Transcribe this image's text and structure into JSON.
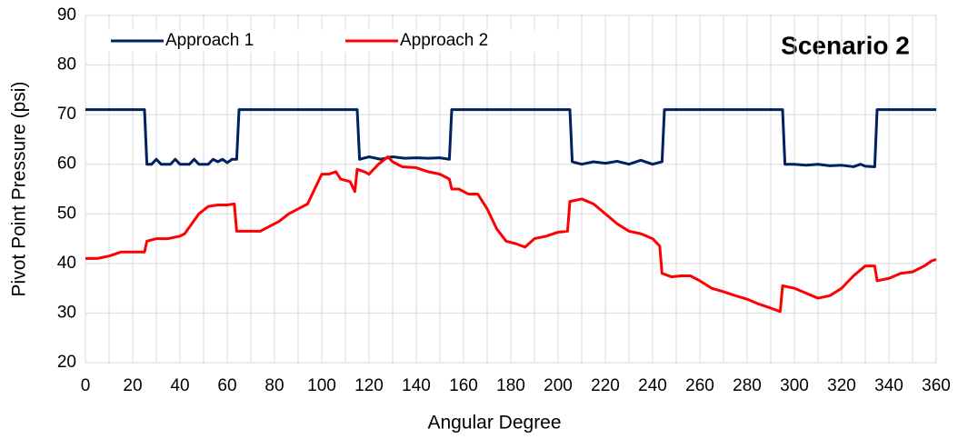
{
  "chart_data": {
    "type": "line",
    "annotation": "Scenario 2",
    "xlabel": "Angular Degree",
    "ylabel": "Pivot Point Pressure (psi)",
    "xlim": [
      0,
      360
    ],
    "xticks": [
      0,
      20,
      40,
      60,
      80,
      100,
      120,
      140,
      160,
      180,
      200,
      220,
      240,
      260,
      280,
      300,
      320,
      340,
      360
    ],
    "x_minor_grid": [
      10,
      30,
      50,
      70,
      90,
      110,
      130,
      150,
      170,
      190,
      210,
      230,
      250,
      270,
      290,
      310,
      330,
      350
    ],
    "ylim": [
      20,
      90
    ],
    "yticks": [
      20,
      30,
      40,
      50,
      60,
      70,
      80,
      90
    ],
    "grid": true,
    "legend": "top-left",
    "series": [
      {
        "name": "Approach 1",
        "color": "#002060",
        "x": [
          0,
          25,
          26,
          28,
          30,
          32,
          36,
          38,
          40,
          44,
          46,
          48,
          52,
          54,
          56,
          58,
          60,
          62,
          64,
          65,
          115,
          116,
          120,
          125,
          130,
          135,
          140,
          145,
          150,
          154,
          155,
          205,
          206,
          210,
          215,
          220,
          225,
          230,
          235,
          240,
          244,
          245,
          295,
          296,
          300,
          305,
          310,
          315,
          320,
          325,
          328,
          330,
          334,
          335,
          360
        ],
        "values": [
          71,
          71,
          60,
          60,
          61,
          60,
          60,
          61,
          60,
          60,
          61,
          60,
          60,
          61,
          60.5,
          61,
          60.3,
          61,
          61,
          71,
          71,
          61,
          61.5,
          61,
          61.5,
          61.2,
          61.3,
          61.2,
          61.3,
          61,
          71,
          71,
          60.5,
          60,
          60.5,
          60.2,
          60.6,
          60,
          60.8,
          60,
          60.5,
          71,
          71,
          60,
          60,
          59.8,
          60,
          59.7,
          59.8,
          59.5,
          60,
          59.6,
          59.5,
          71,
          71
        ]
      },
      {
        "name": "Approach 2",
        "color": "#ff0000",
        "x": [
          0,
          5,
          10,
          15,
          20,
          25,
          26,
          30,
          35,
          40,
          42,
          45,
          48,
          52,
          56,
          60,
          63,
          64,
          70,
          74,
          78,
          82,
          86,
          90,
          94,
          97,
          100,
          103,
          106,
          108,
          112,
          114,
          115,
          118,
          120,
          124,
          128,
          130,
          134,
          140,
          145,
          150,
          154,
          155,
          158,
          162,
          166,
          170,
          174,
          178,
          182,
          186,
          190,
          195,
          200,
          204,
          205,
          210,
          215,
          220,
          225,
          230,
          235,
          240,
          243,
          244,
          248,
          252,
          256,
          260,
          265,
          270,
          275,
          280,
          285,
          290,
          294,
          295,
          300,
          305,
          310,
          315,
          320,
          325,
          330,
          334,
          335,
          340,
          345,
          350,
          355,
          358,
          360
        ],
        "values": [
          41,
          41,
          41.5,
          42.3,
          42.3,
          42.3,
          44.5,
          45,
          45,
          45.5,
          46,
          48,
          50,
          51.5,
          51.8,
          51.8,
          52,
          46.5,
          46.5,
          46.5,
          47.5,
          48.5,
          50,
          51,
          52,
          55,
          58,
          58,
          58.5,
          57,
          56.5,
          54.5,
          59,
          58.5,
          58,
          60,
          61.5,
          60.5,
          59.5,
          59.3,
          58.5,
          58,
          57,
          55,
          55,
          54,
          54,
          51,
          47,
          44.5,
          44,
          43.3,
          45,
          45.5,
          46.3,
          46.5,
          52.5,
          53,
          52,
          50,
          48,
          46.5,
          46,
          45,
          43.5,
          38,
          37.3,
          37.5,
          37.5,
          36.5,
          35,
          34.3,
          33.5,
          32.8,
          31.8,
          31,
          30.3,
          35.5,
          35,
          34,
          33,
          33.5,
          35,
          37.5,
          39.5,
          39.5,
          36.5,
          37,
          38,
          38.3,
          39.5,
          40.5,
          40.8
        ]
      }
    ]
  }
}
